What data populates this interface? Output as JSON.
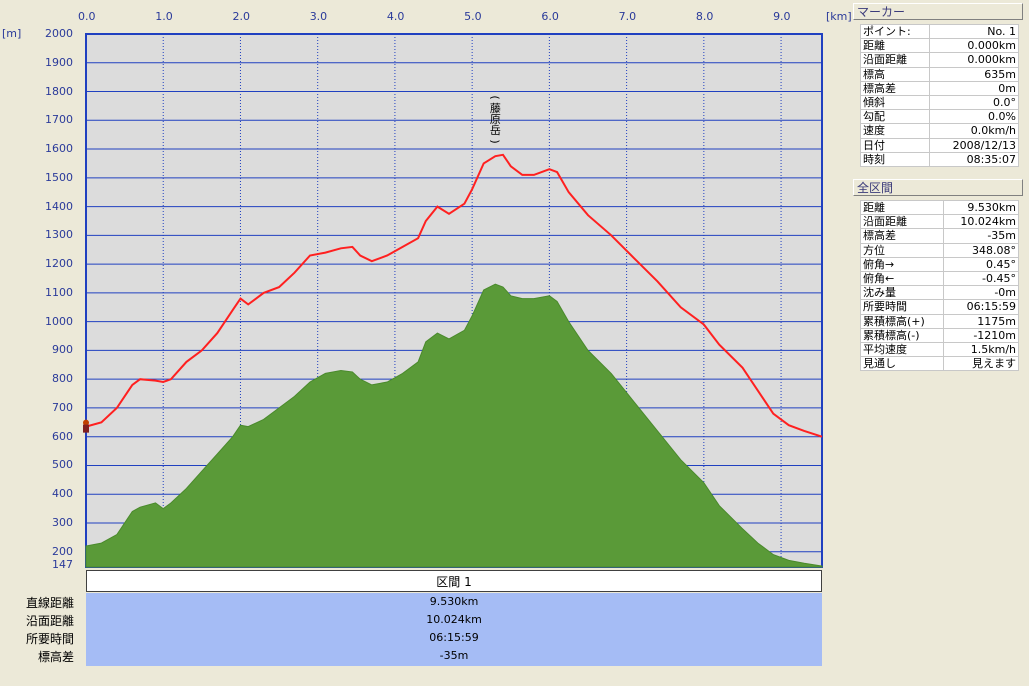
{
  "chart_data": {
    "type": "area",
    "x_unit": "[km]",
    "y_unit": "[m]",
    "x_ticks": [
      "0.0",
      "1.0",
      "2.0",
      "3.0",
      "4.0",
      "5.0",
      "6.0",
      "7.0",
      "8.0",
      "9.0"
    ],
    "y_ticks": [
      "2000",
      "1900",
      "1800",
      "1700",
      "1600",
      "1500",
      "1400",
      "1300",
      "1200",
      "1100",
      "1000",
      "900",
      "800",
      "700",
      "600",
      "500",
      "400",
      "300",
      "200"
    ],
    "y_min_label": "147",
    "xlim": [
      0,
      9.53
    ],
    "ylim": [
      147,
      2000
    ],
    "annotation": "(藤原岳)",
    "annotation_x": 5.3,
    "series": [
      {
        "color": "#ff2020",
        "x": [
          0,
          0.2,
          0.4,
          0.6,
          0.7,
          0.9,
          1.0,
          1.1,
          1.3,
          1.5,
          1.7,
          1.9,
          2.0,
          2.1,
          2.3,
          2.5,
          2.7,
          2.9,
          3.1,
          3.3,
          3.45,
          3.55,
          3.7,
          3.9,
          4.1,
          4.3,
          4.4,
          4.55,
          4.7,
          4.9,
          5.0,
          5.15,
          5.3,
          5.4,
          5.5,
          5.65,
          5.8,
          6.0,
          6.1,
          6.25,
          6.5,
          6.8,
          7.1,
          7.4,
          7.7,
          8.0,
          8.2,
          8.5,
          8.7,
          8.9,
          9.1,
          9.3,
          9.53
        ],
        "y": [
          635,
          650,
          700,
          780,
          800,
          795,
          790,
          800,
          860,
          900,
          960,
          1040,
          1080,
          1060,
          1100,
          1120,
          1170,
          1230,
          1240,
          1255,
          1260,
          1230,
          1210,
          1230,
          1260,
          1290,
          1350,
          1400,
          1375,
          1410,
          1460,
          1550,
          1575,
          1580,
          1540,
          1510,
          1510,
          1530,
          1520,
          1450,
          1370,
          1300,
          1220,
          1140,
          1050,
          990,
          920,
          840,
          760,
          680,
          640,
          620,
          600
        ]
      },
      {
        "color": "#5a9a38",
        "x": [
          0,
          0.2,
          0.4,
          0.6,
          0.7,
          0.9,
          1.0,
          1.1,
          1.3,
          1.5,
          1.7,
          1.9,
          2.0,
          2.1,
          2.3,
          2.5,
          2.7,
          2.9,
          3.1,
          3.3,
          3.45,
          3.55,
          3.7,
          3.9,
          4.1,
          4.3,
          4.4,
          4.55,
          4.7,
          4.9,
          5.0,
          5.15,
          5.3,
          5.4,
          5.5,
          5.65,
          5.8,
          6.0,
          6.1,
          6.25,
          6.5,
          6.8,
          7.1,
          7.4,
          7.7,
          8.0,
          8.2,
          8.5,
          8.7,
          8.9,
          9.1,
          9.3,
          9.53
        ],
        "y": [
          220,
          230,
          260,
          340,
          355,
          370,
          350,
          370,
          420,
          480,
          540,
          600,
          640,
          635,
          660,
          700,
          740,
          790,
          820,
          830,
          825,
          800,
          780,
          790,
          820,
          860,
          930,
          960,
          940,
          970,
          1020,
          1110,
          1130,
          1120,
          1090,
          1080,
          1080,
          1090,
          1070,
          1000,
          900,
          820,
          720,
          620,
          520,
          440,
          360,
          280,
          230,
          190,
          170,
          160,
          150
        ]
      }
    ]
  },
  "marker_panel": {
    "title": "マーカー",
    "rows": [
      {
        "label": "ポイント:",
        "value": "No. 1"
      },
      {
        "label": "距離",
        "value": "0.000km"
      },
      {
        "label": "沿面距離",
        "value": "0.000km"
      },
      {
        "label": "標高",
        "value": "635m"
      },
      {
        "label": "標高差",
        "value": "0m"
      },
      {
        "label": "傾斜",
        "value": "0.0°"
      },
      {
        "label": "勾配",
        "value": "0.0%"
      },
      {
        "label": "速度",
        "value": "0.0km/h"
      },
      {
        "label": "日付",
        "value": "2008/12/13"
      },
      {
        "label": "時刻",
        "value": "08:35:07"
      }
    ]
  },
  "total_panel": {
    "title": "全区間",
    "rows": [
      {
        "label": "距離",
        "value": "9.530km"
      },
      {
        "label": "沿面距離",
        "value": "10.024km"
      },
      {
        "label": "標高差",
        "value": "-35m"
      },
      {
        "label": "方位",
        "value": "348.08°"
      },
      {
        "label": "俯角→",
        "value": "0.45°"
      },
      {
        "label": "俯角←",
        "value": "-0.45°"
      },
      {
        "label": "沈み量",
        "value": "-0m"
      },
      {
        "label": "所要時間",
        "value": "06:15:59"
      },
      {
        "label": "累積標高(+)",
        "value": "1175m"
      },
      {
        "label": "累積標高(-)",
        "value": "-1210m"
      },
      {
        "label": "平均速度",
        "value": "1.5km/h"
      },
      {
        "label": "見通し",
        "value": "見えます"
      }
    ]
  },
  "section": {
    "header": "区間 1",
    "labels": [
      "直線距離",
      "沿面距離",
      "所要時間",
      "標高差"
    ],
    "values": [
      "9.530km",
      "10.024km",
      "06:15:59",
      "-35m"
    ]
  },
  "colors": {
    "grid": "#2040c0",
    "plot_bg": "#dcdcdc",
    "profile": "#ff2020",
    "terrain": "#5a9a38",
    "section_bg": "#a5bcf5"
  }
}
